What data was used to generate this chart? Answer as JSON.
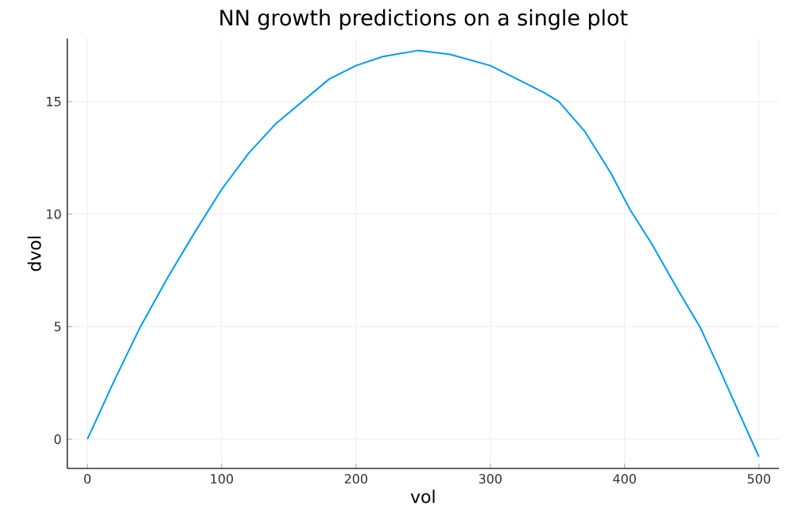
{
  "chart_data": {
    "type": "line",
    "title": "NN growth predictions on a single plot",
    "xlabel": "vol",
    "ylabel": "dvol",
    "series": [
      {
        "color": "#009afa",
        "x": [
          0,
          20,
          39.5,
          60,
          80,
          100,
          120,
          140,
          160,
          180,
          200,
          220,
          246,
          270,
          300,
          320,
          340,
          351,
          370,
          390,
          404,
          420,
          440,
          456,
          470,
          485,
          500
        ],
        "values": [
          0,
          2.6,
          5,
          7.2,
          9.2,
          11.1,
          12.7,
          14.0,
          15.0,
          16.0,
          16.6,
          17.0,
          17.27,
          17.1,
          16.6,
          16.0,
          15.4,
          15,
          13.7,
          11.8,
          10.2,
          8.7,
          6.6,
          5,
          3.2,
          1.2,
          -0.78
        ]
      }
    ],
    "xlim": [
      -15,
      515
    ],
    "ylim": [
      -1.3,
      17.8
    ],
    "xticks": [
      0,
      100,
      200,
      300,
      400,
      500
    ],
    "yticks": [
      0,
      5,
      10,
      15
    ],
    "grid": true,
    "marker": "none",
    "line_style": "solid"
  }
}
